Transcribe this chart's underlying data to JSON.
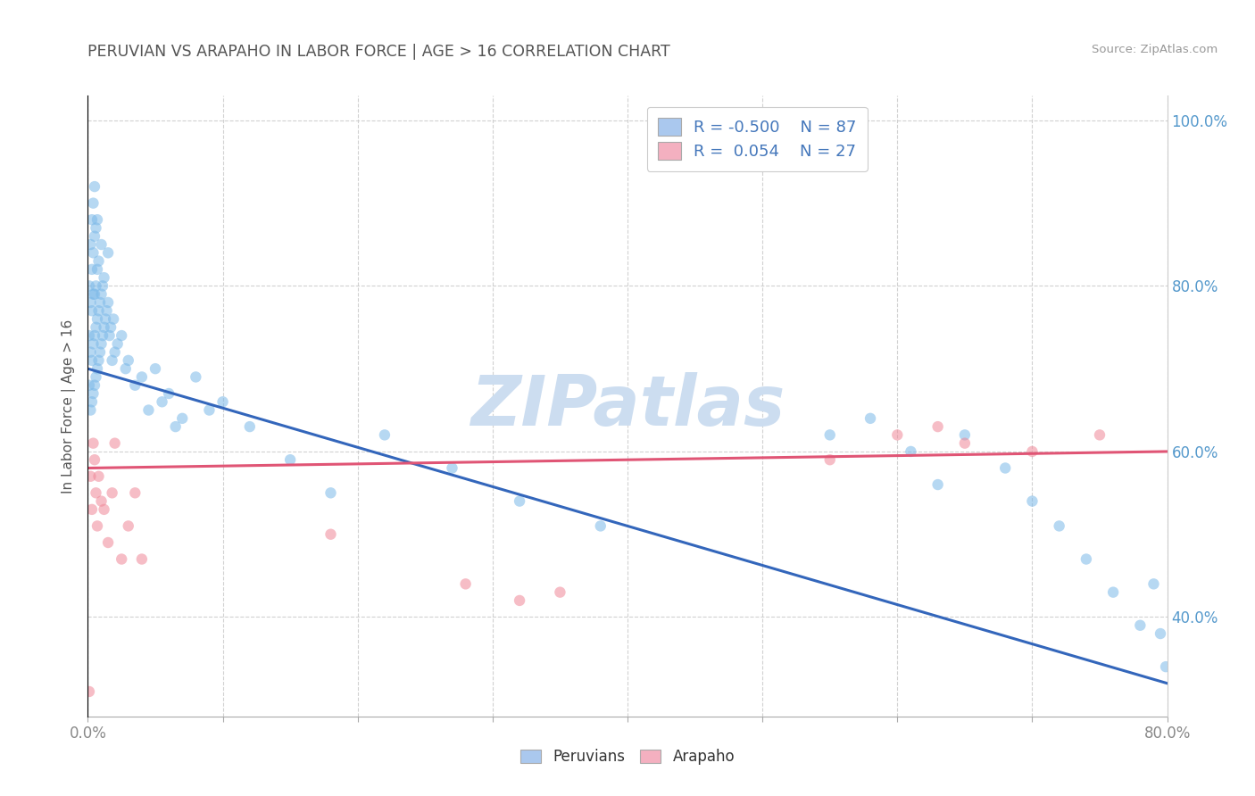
{
  "title": "PERUVIAN VS ARAPAHO IN LABOR FORCE | AGE > 16 CORRELATION CHART",
  "source": "Source: ZipAtlas.com",
  "ylabel": "In Labor Force | Age > 16",
  "xmin": 0.0,
  "xmax": 0.8,
  "ymin": 0.28,
  "ymax": 1.03,
  "xticks": [
    0.0,
    0.1,
    0.2,
    0.3,
    0.4,
    0.5,
    0.6,
    0.7,
    0.8
  ],
  "yticks": [
    0.4,
    0.6,
    0.8,
    1.0
  ],
  "ytick_labels": [
    "40.0%",
    "60.0%",
    "80.0%",
    "100.0%"
  ],
  "blue_R": -0.5,
  "blue_N": 87,
  "pink_R": 0.054,
  "pink_N": 27,
  "blue_dot_color": "#7ab8e8",
  "pink_dot_color": "#f08898",
  "blue_line_color": "#3366bb",
  "pink_line_color": "#e05575",
  "watermark": "ZIPatlas",
  "watermark_color": "#ccddf0",
  "background_color": "#ffffff",
  "grid_color": "#cccccc",
  "title_color": "#555555",
  "legend_box_colors": [
    "#aac8ee",
    "#f4b0c0"
  ],
  "peruvian_label": "Peruvians",
  "arapaho_label": "Arapaho",
  "blue_line_y0": 0.7,
  "blue_line_y1": 0.32,
  "pink_line_y0": 0.58,
  "pink_line_y1": 0.6,
  "blue_scatter_x": [
    0.001,
    0.001,
    0.001,
    0.002,
    0.002,
    0.002,
    0.002,
    0.003,
    0.003,
    0.003,
    0.003,
    0.003,
    0.004,
    0.004,
    0.004,
    0.004,
    0.004,
    0.005,
    0.005,
    0.005,
    0.005,
    0.005,
    0.006,
    0.006,
    0.006,
    0.006,
    0.007,
    0.007,
    0.007,
    0.007,
    0.008,
    0.008,
    0.008,
    0.009,
    0.009,
    0.01,
    0.01,
    0.01,
    0.011,
    0.011,
    0.012,
    0.012,
    0.013,
    0.014,
    0.015,
    0.015,
    0.016,
    0.017,
    0.018,
    0.019,
    0.02,
    0.022,
    0.025,
    0.028,
    0.03,
    0.035,
    0.04,
    0.045,
    0.05,
    0.055,
    0.06,
    0.065,
    0.07,
    0.08,
    0.09,
    0.1,
    0.12,
    0.15,
    0.18,
    0.22,
    0.27,
    0.32,
    0.38,
    0.55,
    0.58,
    0.61,
    0.63,
    0.65,
    0.68,
    0.7,
    0.72,
    0.74,
    0.76,
    0.78,
    0.79,
    0.795,
    0.799
  ],
  "blue_scatter_y": [
    0.68,
    0.74,
    0.8,
    0.65,
    0.72,
    0.78,
    0.85,
    0.66,
    0.71,
    0.77,
    0.82,
    0.88,
    0.67,
    0.73,
    0.79,
    0.84,
    0.9,
    0.68,
    0.74,
    0.79,
    0.86,
    0.92,
    0.69,
    0.75,
    0.8,
    0.87,
    0.7,
    0.76,
    0.82,
    0.88,
    0.71,
    0.77,
    0.83,
    0.72,
    0.78,
    0.73,
    0.79,
    0.85,
    0.74,
    0.8,
    0.75,
    0.81,
    0.76,
    0.77,
    0.78,
    0.84,
    0.74,
    0.75,
    0.71,
    0.76,
    0.72,
    0.73,
    0.74,
    0.7,
    0.71,
    0.68,
    0.69,
    0.65,
    0.7,
    0.66,
    0.67,
    0.63,
    0.64,
    0.69,
    0.65,
    0.66,
    0.63,
    0.59,
    0.55,
    0.62,
    0.58,
    0.54,
    0.51,
    0.62,
    0.64,
    0.6,
    0.56,
    0.62,
    0.58,
    0.54,
    0.51,
    0.47,
    0.43,
    0.39,
    0.44,
    0.38,
    0.34
  ],
  "pink_scatter_x": [
    0.001,
    0.002,
    0.003,
    0.004,
    0.005,
    0.006,
    0.007,
    0.008,
    0.01,
    0.012,
    0.015,
    0.018,
    0.02,
    0.025,
    0.03,
    0.035,
    0.04,
    0.18,
    0.28,
    0.32,
    0.35,
    0.55,
    0.6,
    0.63,
    0.65,
    0.7,
    0.75
  ],
  "pink_scatter_y": [
    0.31,
    0.57,
    0.53,
    0.61,
    0.59,
    0.55,
    0.51,
    0.57,
    0.54,
    0.53,
    0.49,
    0.55,
    0.61,
    0.47,
    0.51,
    0.55,
    0.47,
    0.5,
    0.44,
    0.42,
    0.43,
    0.59,
    0.62,
    0.63,
    0.61,
    0.6,
    0.62
  ]
}
